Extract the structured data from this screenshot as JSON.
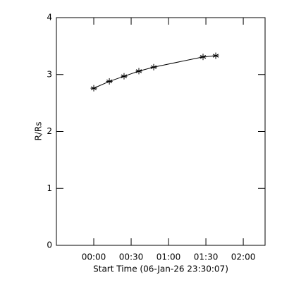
{
  "chart_data": {
    "type": "line",
    "ylabel": "R/Rs",
    "xlabel": "Start Time (06-Jan-26 23:30:07)",
    "x": [
      0,
      12.5,
      24.3,
      36.2,
      48.1,
      87.7,
      97.9
    ],
    "series": [
      {
        "color": "#000000",
        "marker": "*",
        "values": [
          2.76,
          2.88,
          2.97,
          3.06,
          3.13,
          3.31,
          3.33
        ]
      }
    ],
    "xlim": [
      -30,
      137.5
    ],
    "xticks": [
      {
        "value": 0,
        "label": "00:00"
      },
      {
        "value": 30,
        "label": "00:30"
      },
      {
        "value": 60,
        "label": "01:00"
      },
      {
        "value": 90,
        "label": "01:30"
      },
      {
        "value": 120,
        "label": "02:00"
      }
    ],
    "ylim": [
      0,
      4
    ],
    "yticks": [
      0,
      1,
      2,
      3,
      4
    ]
  }
}
